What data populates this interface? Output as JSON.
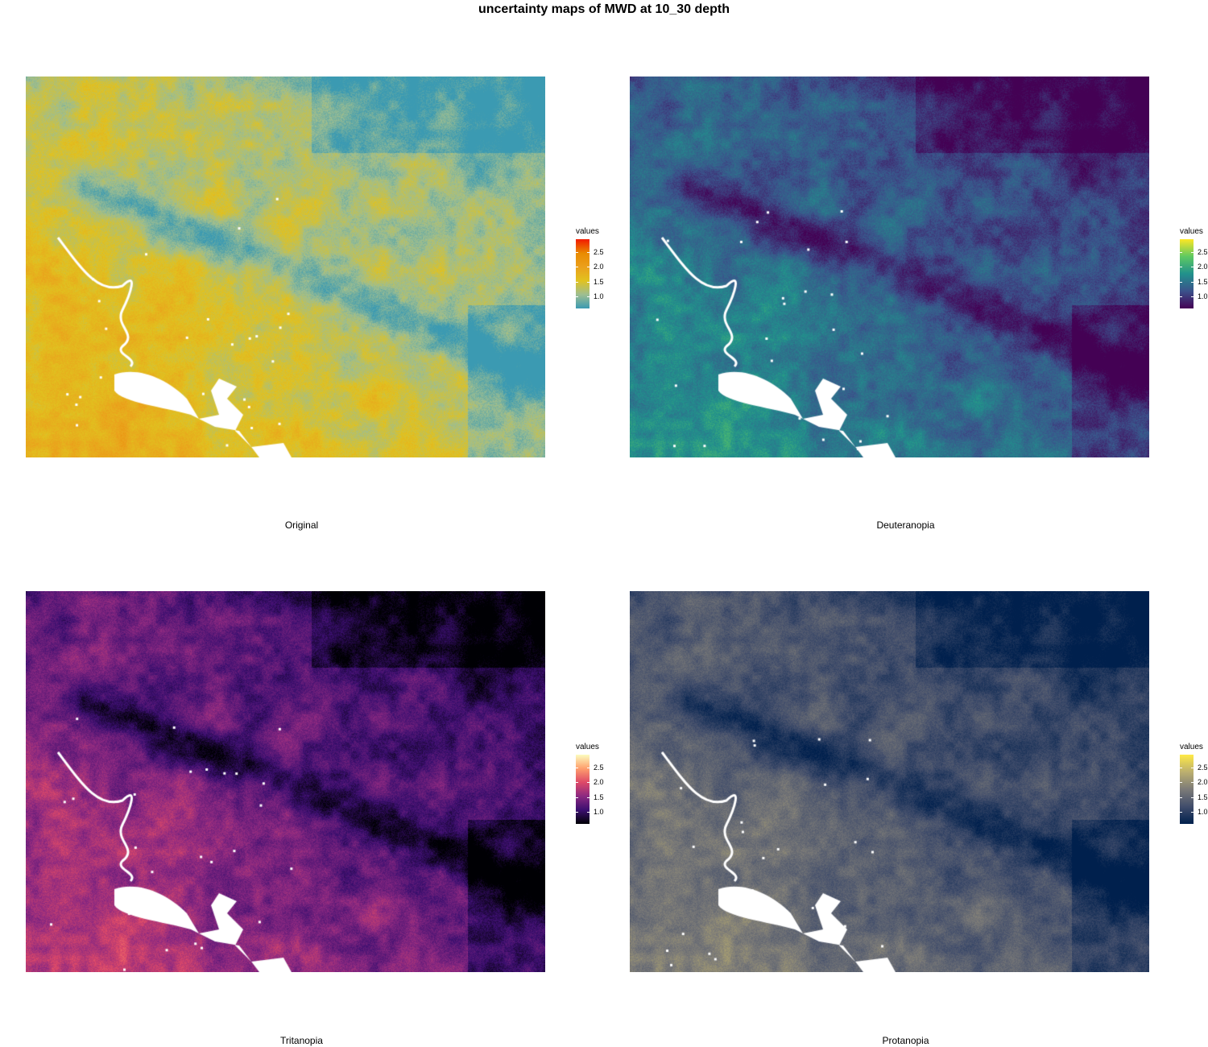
{
  "title": "uncertainty maps of MWD at 10_30 depth",
  "panels": [
    {
      "caption": "Original",
      "legend_title": "values",
      "ticks": [
        "2.5",
        "2.0",
        "1.5",
        "1.0"
      ],
      "colormap": [
        "#3b9ab2",
        "#9ebe91",
        "#e1c21f",
        "#eba01c",
        "#e98a00",
        "#f21a00"
      ]
    },
    {
      "caption": "Deuteranopia",
      "legend_title": "values",
      "ticks": [
        "2.5",
        "2.0",
        "1.5",
        "1.0"
      ],
      "colormap": [
        "#440154",
        "#3b528b",
        "#21918c",
        "#5ec962",
        "#fde725"
      ]
    },
    {
      "caption": "Tritanopia",
      "legend_title": "values",
      "ticks": [
        "2.5",
        "2.0",
        "1.5",
        "1.0"
      ],
      "colormap": [
        "#000004",
        "#3b0f70",
        "#8c2981",
        "#de4968",
        "#fe9f6d",
        "#fcfdbf"
      ]
    },
    {
      "caption": "Protanopia",
      "legend_title": "values",
      "ticks": [
        "2.5",
        "2.0",
        "1.5",
        "1.0"
      ],
      "colormap": [
        "#00204d",
        "#414d6b",
        "#7c7b78",
        "#bcaf6f",
        "#ffea46"
      ]
    }
  ]
}
